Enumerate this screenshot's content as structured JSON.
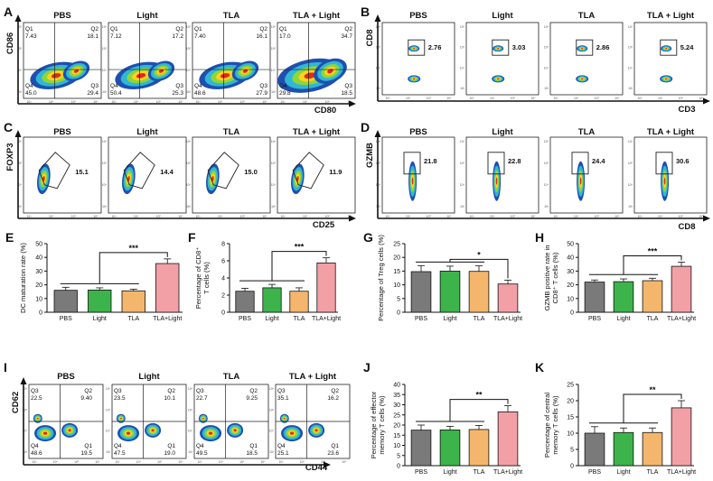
{
  "figure": {
    "colors": {
      "pbs": "#7a7a7a",
      "light": "#3cb44b",
      "tla": "#f4b66c",
      "tla_light": "#f2a0a5",
      "contour_outer": "#1f4fb0",
      "contour_mid": "#2fb7d6",
      "contour_inner": "#8fd53a",
      "hot": "#ffd21f",
      "core": "#e02a1e"
    },
    "panel_A": {
      "letter": "A",
      "x_axis_label": "CD80",
      "y_axis_label": "CD86",
      "tick_labels": [
        "0",
        "10³",
        "10⁴",
        "10⁵",
        "10⁶"
      ],
      "groups": [
        {
          "title": "PBS",
          "quadrants": {
            "q1": "Q1",
            "q1_value": "7.43",
            "q2": "Q2",
            "q2_value": "18.1",
            "q3": "Q3",
            "q3_value": "29.4",
            "q4": "Q4",
            "q4_value": "45.0"
          }
        },
        {
          "title": "Light",
          "quadrants": {
            "q1": "Q1",
            "q1_value": "7.12",
            "q2": "Q2",
            "q2_value": "17.2",
            "q3": "Q3",
            "q3_value": "25.3",
            "q4": "Q4",
            "q4_value": "50.4"
          }
        },
        {
          "title": "TLA",
          "quadrants": {
            "q1": "Q1",
            "q1_value": "7.40",
            "q2": "Q2",
            "q2_value": "16.1",
            "q3": "Q3",
            "q3_value": "27.9",
            "q4": "Q4",
            "q4_value": "48.6"
          }
        },
        {
          "title": "TLA + Light",
          "quadrants": {
            "q1": "Q1",
            "q1_value": "17.0",
            "q2": "Q2",
            "q2_value": "34.7",
            "q3": "Q3",
            "q3_value": "18.5",
            "q4": "Q4",
            "q4_value": "29.8"
          }
        }
      ]
    },
    "panel_B": {
      "letter": "B",
      "x_axis_label": "CD3",
      "y_axis_label": "CD8",
      "tick_labels": [
        "0",
        "10³",
        "10⁴",
        "10⁵",
        "10⁶"
      ],
      "groups": [
        {
          "title": "PBS",
          "gate_value": "2.76"
        },
        {
          "title": "Light",
          "gate_value": "3.03"
        },
        {
          "title": "TLA",
          "gate_value": "2.86"
        },
        {
          "title": "TLA + Light",
          "gate_value": "5.24"
        }
      ]
    },
    "panel_C": {
      "letter": "C",
      "x_axis_label": "CD25",
      "y_axis_label": "FOXP3",
      "tick_labels": [
        "0",
        "10³",
        "10⁴",
        "10⁵",
        "10⁶"
      ],
      "groups": [
        {
          "title": "PBS",
          "gate_value": "15.1"
        },
        {
          "title": "Light",
          "gate_value": "14.4"
        },
        {
          "title": "TLA",
          "gate_value": "15.0"
        },
        {
          "title": "TLA + Light",
          "gate_value": "11.9"
        }
      ]
    },
    "panel_D": {
      "letter": "D",
      "x_axis_label": "CD8",
      "y_axis_label": "GZMB",
      "tick_labels": [
        "0",
        "10³",
        "10⁴",
        "10⁵",
        "10⁶"
      ],
      "groups": [
        {
          "title": "PBS",
          "gate_value": "21.8"
        },
        {
          "title": "Light",
          "gate_value": "22.8"
        },
        {
          "title": "TLA",
          "gate_value": "24.4"
        },
        {
          "title": "TLA + Light",
          "gate_value": "30.6"
        }
      ]
    },
    "panel_I": {
      "letter": "I",
      "x_axis_label": "CD44",
      "y_axis_label": "CD62",
      "tick_labels": [
        "0",
        "10³",
        "10⁴",
        "10⁵",
        "10⁶"
      ],
      "groups": [
        {
          "title": "PBS",
          "quadrants": {
            "q3": "Q3",
            "q3_value": "22.5",
            "q2": "Q2",
            "q2_value": "9.40",
            "q4": "Q4",
            "q4_value": "48.6",
            "q1": "Q1",
            "q1_value": "19.5"
          }
        },
        {
          "title": "Light",
          "quadrants": {
            "q3": "Q3",
            "q3_value": "23.5",
            "q2": "Q2",
            "q2_value": "10.1",
            "q4": "Q4",
            "q4_value": "47.5",
            "q1": "Q1",
            "q1_value": "19.0"
          }
        },
        {
          "title": "TLA",
          "quadrants": {
            "q3": "Q3",
            "q3_value": "22.7",
            "q2": "Q2",
            "q2_value": "9.25",
            "q4": "Q4",
            "q4_value": "49.5",
            "q1": "Q1",
            "q1_value": "18.5"
          }
        },
        {
          "title": "TLA + Light",
          "quadrants": {
            "q3": "Q3",
            "q3_value": "35.1",
            "q2": "Q2",
            "q2_value": "16.2",
            "q4": "Q4",
            "q4_value": "25.1",
            "q1": "Q1",
            "q1_value": "23.6"
          }
        }
      ]
    }
  },
  "chart_data": [
    {
      "id": "E",
      "type": "bar",
      "title": "",
      "categories": [
        "PBS",
        "Light",
        "TLA",
        "TLA+Light"
      ],
      "values": [
        16,
        16.2,
        15.6,
        35.5
      ],
      "errors": [
        2.2,
        1.6,
        1.2,
        3.4
      ],
      "ylim": [
        0,
        50
      ],
      "yticks": [
        "0",
        "10",
        "20",
        "30",
        "40",
        "50"
      ],
      "ylabel": "DC maturation rate (%)",
      "ylabel_line2": "",
      "significance": {
        "from": 0,
        "to": 3,
        "label": "***"
      },
      "xlabel": ""
    },
    {
      "id": "F",
      "type": "bar",
      "title": "",
      "categories": [
        "PBS",
        "Light",
        "TLA",
        "TLA+Light"
      ],
      "values": [
        2.45,
        2.85,
        2.45,
        5.75
      ],
      "errors": [
        0.35,
        0.4,
        0.4,
        0.6
      ],
      "ylim": [
        0,
        8
      ],
      "yticks": [
        "0",
        "2",
        "4",
        "6",
        "8"
      ],
      "ylabel": "Percentage of CD8⁺",
      "ylabel_line2": "T cells (%)",
      "significance": {
        "from": 0,
        "to": 3,
        "label": "***"
      },
      "xlabel": ""
    },
    {
      "id": "G",
      "type": "bar",
      "title": "",
      "categories": [
        "PBS",
        "Light",
        "TLA",
        "TLA+Light"
      ],
      "values": [
        14.8,
        15,
        14.9,
        10.3
      ],
      "errors": [
        2.2,
        1.8,
        2.0,
        1.4
      ],
      "ylim": [
        0,
        25
      ],
      "yticks": [
        "0",
        "5",
        "10",
        "15",
        "20",
        "25"
      ],
      "ylabel": "Percentage of Treg cells (%)",
      "ylabel_line2": "",
      "significance": {
        "from": 0,
        "to": 3,
        "label": "*"
      },
      "xlabel": ""
    },
    {
      "id": "H",
      "type": "bar",
      "title": "",
      "categories": [
        "PBS",
        "Light",
        "TLA",
        "TLA+Light"
      ],
      "values": [
        22,
        22.3,
        23,
        33.5
      ],
      "errors": [
        1.5,
        2,
        1.8,
        3
      ],
      "ylim": [
        0,
        50
      ],
      "yticks": [
        "0",
        "10",
        "20",
        "30",
        "40",
        "50"
      ],
      "ylabel": "GZMB positive rate in",
      "ylabel_line2": "CD8⁺ T cells (%)",
      "significance": {
        "from": 0,
        "to": 3,
        "label": "***"
      },
      "xlabel": ""
    },
    {
      "id": "J",
      "type": "bar",
      "title": "",
      "categories": [
        "PBS",
        "Light",
        "TLA",
        "TLA+Light"
      ],
      "values": [
        17.5,
        17.6,
        17.8,
        26.5
      ],
      "errors": [
        2.5,
        1.8,
        2.0,
        3.0
      ],
      "ylim": [
        0,
        40
      ],
      "yticks": [
        "0",
        "5",
        "10",
        "15",
        "20",
        "25",
        "30",
        "35",
        "40"
      ],
      "ylabel": "Percentage of effector",
      "ylabel_line2": "memory T cells (%)",
      "significance": {
        "from": 0,
        "to": 3,
        "label": "**"
      },
      "xlabel": ""
    },
    {
      "id": "K",
      "type": "bar",
      "title": "",
      "categories": [
        "PBS",
        "Light",
        "TLA",
        "TLA+Light"
      ],
      "values": [
        10,
        10.2,
        10.2,
        17.8
      ],
      "errors": [
        2,
        1.4,
        1.4,
        2.2
      ],
      "ylim": [
        0,
        25
      ],
      "yticks": [
        "0",
        "5",
        "10",
        "15",
        "20",
        "25"
      ],
      "ylabel": "Percentage of central",
      "ylabel_line2": "memory T cells (%)",
      "significance": {
        "from": 0,
        "to": 3,
        "label": "**"
      },
      "xlabel": ""
    }
  ]
}
